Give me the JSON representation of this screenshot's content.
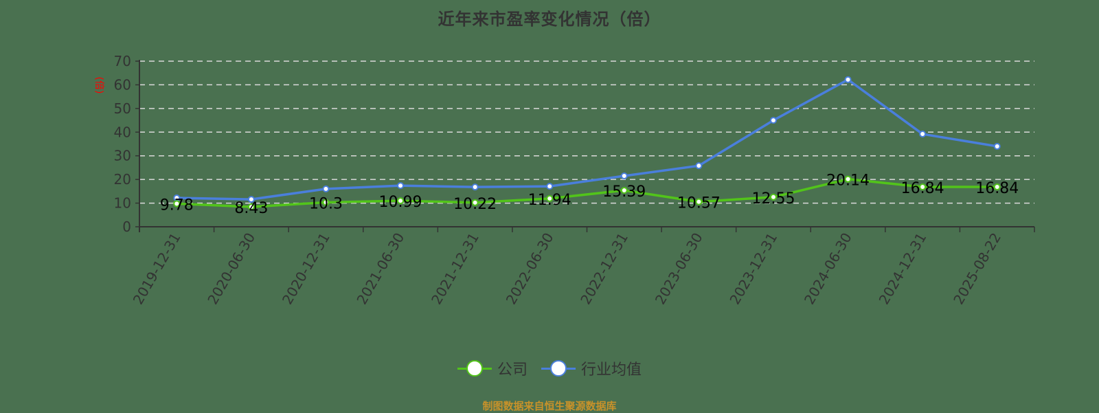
{
  "title": "近年来市盈率变化情况（倍）",
  "y_axis_unit": "(倍)",
  "legend": [
    {
      "label": "公司",
      "color": "#52c41a"
    },
    {
      "label": "行业均值",
      "color": "#4a7fdc"
    }
  ],
  "source": "制图数据来自恒生聚源数据库",
  "colors": {
    "background": "#4a7150",
    "company": "#52c41a",
    "industry": "#4a7fdc",
    "axis": "#333333",
    "grid": "#d9d9d9",
    "unit_label": "#ff0000",
    "source_text": "#c8922a"
  },
  "chart_data": {
    "type": "line",
    "title": "近年来市盈率变化情况（倍）",
    "xlabel": "",
    "ylabel": "(倍)",
    "ylim": [
      0,
      70
    ],
    "yticks": [
      0,
      10,
      20,
      30,
      40,
      50,
      60,
      70
    ],
    "grid": true,
    "legend_position": "bottom",
    "categories": [
      "2019-12-31",
      "2020-06-30",
      "2020-12-31",
      "2021-06-30",
      "2021-12-31",
      "2022-06-30",
      "2022-12-31",
      "2023-06-30",
      "2023-12-31",
      "2024-06-30",
      "2024-12-31",
      "2025-08-22"
    ],
    "series": [
      {
        "name": "公司",
        "values": [
          9.78,
          8.43,
          10.3,
          10.99,
          10.22,
          11.94,
          15.39,
          10.57,
          12.55,
          20.14,
          16.84,
          16.84
        ],
        "labels": [
          "9.78",
          "8.43",
          "10.3",
          "10.99",
          "10.22",
          "11.94",
          "15.39",
          "10.57",
          "12.55",
          "20.14",
          "16.84",
          "16.84"
        ]
      },
      {
        "name": "行业均值",
        "values": [
          12.2,
          11.6,
          16.0,
          17.4,
          16.8,
          17.1,
          21.5,
          25.8,
          45.0,
          62.2,
          39.2,
          34.0
        ]
      }
    ]
  }
}
